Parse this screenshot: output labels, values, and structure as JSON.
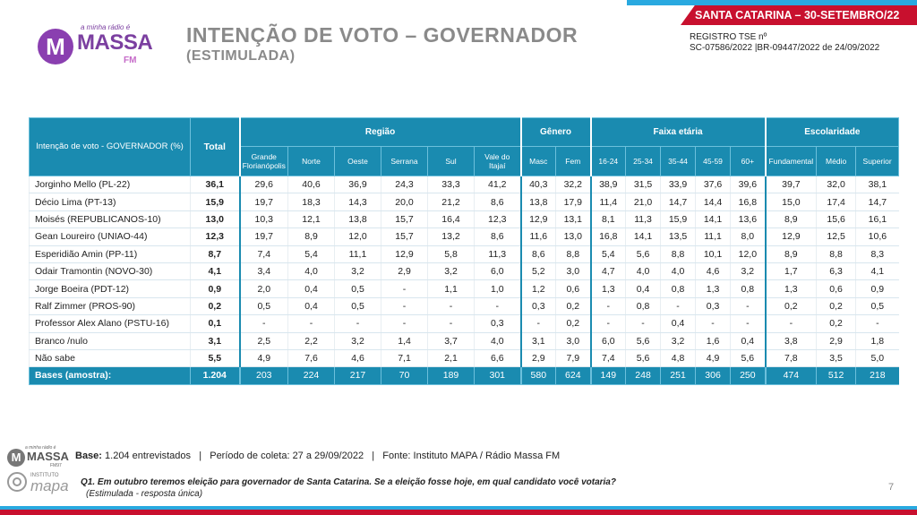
{
  "banner": "SANTA CATARINA – 30-SETEMBRO/22",
  "registro": {
    "line1": "REGISTRO  TSE nº",
    "line2": "SC-07586/2022 |BR-09447/2022 de 24/09/2022"
  },
  "logo": {
    "tagline": "a minha rádio é",
    "letter": "M",
    "brand": "MASSA",
    "fm": "FM"
  },
  "title": "INTENÇÃO DE VOTO – GOVERNADOR",
  "subtitle": "(ESTIMULADA)",
  "table": {
    "row_header": "Intenção de voto - GOVERNADOR (%)",
    "total_header": "Total",
    "groups": {
      "regiao": "Região",
      "genero": "Gênero",
      "faixa": "Faixa etária",
      "escolaridade": "Escolaridade"
    },
    "columns": [
      "Grande Florianópolis",
      "Norte",
      "Oeste",
      "Serrana",
      "Sul",
      "Vale do Itajaí",
      "Masc",
      "Fem",
      "16-24",
      "25-34",
      "35-44",
      "45-59",
      "60+",
      "Fundamental",
      "Médio",
      "Superior"
    ],
    "rows": [
      {
        "name": "Jorginho Mello (PL-22)",
        "total": "36,1",
        "values": [
          "29,6",
          "40,6",
          "36,9",
          "24,3",
          "33,3",
          "41,2",
          "40,3",
          "32,2",
          "38,9",
          "31,5",
          "33,9",
          "37,6",
          "39,6",
          "39,7",
          "32,0",
          "38,1"
        ]
      },
      {
        "name": "Décio Lima (PT-13)",
        "total": "15,9",
        "values": [
          "19,7",
          "18,3",
          "14,3",
          "20,0",
          "21,2",
          "8,6",
          "13,8",
          "17,9",
          "11,4",
          "21,0",
          "14,7",
          "14,4",
          "16,8",
          "15,0",
          "17,4",
          "14,7"
        ]
      },
      {
        "name": "Moisés (REPUBLICANOS-10)",
        "total": "13,0",
        "values": [
          "10,3",
          "12,1",
          "13,8",
          "15,7",
          "16,4",
          "12,3",
          "12,9",
          "13,1",
          "8,1",
          "11,3",
          "15,9",
          "14,1",
          "13,6",
          "8,9",
          "15,6",
          "16,1"
        ]
      },
      {
        "name": "Gean Loureiro (UNIAO-44)",
        "total": "12,3",
        "values": [
          "19,7",
          "8,9",
          "12,0",
          "15,7",
          "13,2",
          "8,6",
          "11,6",
          "13,0",
          "16,8",
          "14,1",
          "13,5",
          "11,1",
          "8,0",
          "12,9",
          "12,5",
          "10,6"
        ]
      },
      {
        "name": "Esperidião Amin (PP-11)",
        "total": "8,7",
        "values": [
          "7,4",
          "5,4",
          "11,1",
          "12,9",
          "5,8",
          "11,3",
          "8,6",
          "8,8",
          "5,4",
          "5,6",
          "8,8",
          "10,1",
          "12,0",
          "8,9",
          "8,8",
          "8,3"
        ]
      },
      {
        "name": "Odair Tramontin (NOVO-30)",
        "total": "4,1",
        "values": [
          "3,4",
          "4,0",
          "3,2",
          "2,9",
          "3,2",
          "6,0",
          "5,2",
          "3,0",
          "4,7",
          "4,0",
          "4,0",
          "4,6",
          "3,2",
          "1,7",
          "6,3",
          "4,1"
        ]
      },
      {
        "name": "Jorge Boeira (PDT-12)",
        "total": "0,9",
        "values": [
          "2,0",
          "0,4",
          "0,5",
          "-",
          "1,1",
          "1,0",
          "1,2",
          "0,6",
          "1,3",
          "0,4",
          "0,8",
          "1,3",
          "0,8",
          "1,3",
          "0,6",
          "0,9"
        ]
      },
      {
        "name": "Ralf Zimmer (PROS-90)",
        "total": "0,2",
        "values": [
          "0,5",
          "0,4",
          "0,5",
          "-",
          "-",
          "-",
          "0,3",
          "0,2",
          "-",
          "0,8",
          "-",
          "0,3",
          "-",
          "0,2",
          "0,2",
          "0,5"
        ]
      },
      {
        "name": "Professor Alex Alano (PSTU-16)",
        "total": "0,1",
        "values": [
          "-",
          "-",
          "-",
          "-",
          "-",
          "0,3",
          "-",
          "0,2",
          "-",
          "-",
          "0,4",
          "-",
          "-",
          "-",
          "0,2",
          "-"
        ]
      },
      {
        "name": "Branco /nulo",
        "total": "3,1",
        "values": [
          "2,5",
          "2,2",
          "3,2",
          "1,4",
          "3,7",
          "4,0",
          "3,1",
          "3,0",
          "6,0",
          "5,6",
          "3,2",
          "1,6",
          "0,4",
          "3,8",
          "2,9",
          "1,8"
        ]
      },
      {
        "name": "Não sabe",
        "total": "5,5",
        "values": [
          "4,9",
          "7,6",
          "4,6",
          "7,1",
          "2,1",
          "6,6",
          "2,9",
          "7,9",
          "7,4",
          "5,6",
          "4,8",
          "4,9",
          "5,6",
          "7,8",
          "3,5",
          "5,0"
        ]
      }
    ],
    "bases": {
      "name": "Bases (amostra):",
      "total": "1.204",
      "values": [
        "203",
        "224",
        "217",
        "70",
        "189",
        "301",
        "580",
        "624",
        "149",
        "248",
        "251",
        "306",
        "250",
        "474",
        "512",
        "218"
      ]
    }
  },
  "footer": {
    "logo_tag": "a minha rádio é",
    "logo_letter": "M",
    "logo_brand": "MASSA",
    "logo_fm": "FM97",
    "mapa_inst": "INSTITUTO",
    "mapa_name": "mapa",
    "base_label": "Base:",
    "base_text": " 1.204 entrevistados   |   Período de coleta: 27 a 29/09/2022   |   Fonte: Instituto MAPA / Rádio Massa FM",
    "question": "Q1. Em outubro teremos eleição para governador de Santa Catarina. Se a eleição fosse hoje, em qual candidato você votaria?",
    "question_note": "(Estimulada - resposta única)",
    "page": "7"
  }
}
